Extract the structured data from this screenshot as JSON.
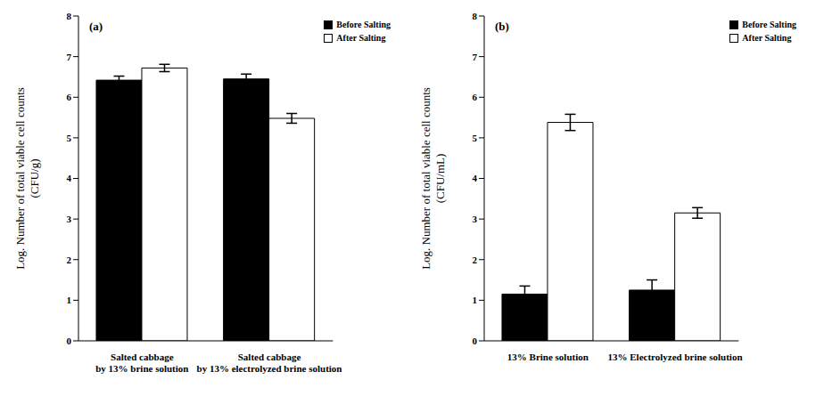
{
  "chart_data": [
    {
      "type": "bar",
      "title": "(a)",
      "y_label": "Log. Number of total viable cell counts\n(CFU/g)",
      "categories": [
        "Salted cabbage\nby 13% brine solution",
        "Salted cabbage\nby 13% electrolyzed brine solution"
      ],
      "series": [
        {
          "name": "Before Salting",
          "color": "#000000",
          "values": [
            6.42,
            6.45
          ],
          "errors": [
            0.1,
            0.12
          ]
        },
        {
          "name": "After Salting",
          "color": "#ffffff",
          "values": [
            6.72,
            5.48
          ],
          "errors": [
            0.09,
            0.12
          ]
        }
      ],
      "ylim": [
        0,
        8
      ],
      "yticks": [
        0,
        1,
        2,
        3,
        4,
        5,
        6,
        7,
        8
      ],
      "grid": false,
      "legend": "upper right"
    },
    {
      "type": "bar",
      "title": "(b)",
      "y_label": "Log. Number of total viable cell counts\n(CFU/mL)",
      "categories": [
        "13% Brine solution",
        "13% Electrolyzed brine solution"
      ],
      "series": [
        {
          "name": "Before Salting",
          "color": "#000000",
          "values": [
            1.15,
            1.25
          ],
          "errors": [
            0.2,
            0.25
          ]
        },
        {
          "name": "After Salting",
          "color": "#ffffff",
          "values": [
            5.38,
            3.15
          ],
          "errors": [
            0.2,
            0.13
          ]
        }
      ],
      "ylim": [
        0,
        8
      ],
      "yticks": [
        0,
        1,
        2,
        3,
        4,
        5,
        6,
        7,
        8
      ],
      "grid": false,
      "legend": "upper right"
    }
  ]
}
